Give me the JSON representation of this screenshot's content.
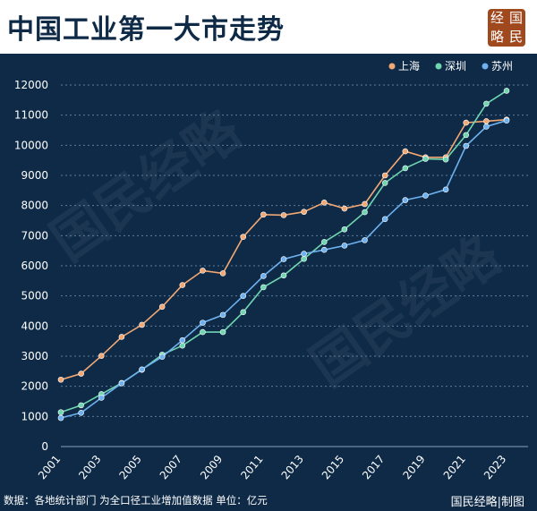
{
  "header": {
    "title": "中国工业第一大市走势",
    "logo": [
      "经",
      "国",
      "略",
      "民"
    ]
  },
  "footer": {
    "source": "数据：各地统计部门  为全口径工业增加值数据 单位：亿元",
    "credit": "国民经略|制图"
  },
  "watermark": "国民经略",
  "chart_data": {
    "type": "line",
    "x": [
      2001,
      2002,
      2003,
      2004,
      2005,
      2006,
      2007,
      2008,
      2009,
      2010,
      2011,
      2012,
      2013,
      2014,
      2015,
      2016,
      2017,
      2018,
      2019,
      2020,
      2021,
      2022,
      2023
    ],
    "x_tick_labels": [
      "2001",
      "2003",
      "2005",
      "2007",
      "2009",
      "2011",
      "2013",
      "2015",
      "2017",
      "2019",
      "2021",
      "2023"
    ],
    "y_ticks": [
      0,
      1000,
      2000,
      3000,
      4000,
      5000,
      6000,
      7000,
      8000,
      9000,
      10000,
      11000,
      12000
    ],
    "ylim": [
      0,
      12000
    ],
    "grid": "horizontal dotted",
    "legend_position": "top-right",
    "series": [
      {
        "name": "上海",
        "color": "#f2a873",
        "values": [
          2220,
          2420,
          3010,
          3640,
          4040,
          4640,
          5360,
          5840,
          5750,
          6960,
          7700,
          7680,
          7790,
          8100,
          7900,
          8050,
          9000,
          9800,
          9600,
          9600,
          10750,
          10800,
          10850
        ]
      },
      {
        "name": "深圳",
        "color": "#6fd6b0",
        "values": [
          1140,
          1370,
          1740,
          2110,
          2550,
          3050,
          3350,
          3800,
          3800,
          4460,
          5290,
          5680,
          6230,
          6790,
          7210,
          7780,
          8750,
          9240,
          9550,
          9530,
          10340,
          11380,
          11810
        ]
      },
      {
        "name": "苏州",
        "color": "#6eb1f0",
        "values": [
          950,
          1120,
          1620,
          2100,
          2560,
          2980,
          3530,
          4110,
          4370,
          5000,
          5660,
          6220,
          6400,
          6530,
          6670,
          6850,
          7550,
          8180,
          8330,
          8530,
          9980,
          10620,
          10820
        ]
      }
    ]
  }
}
